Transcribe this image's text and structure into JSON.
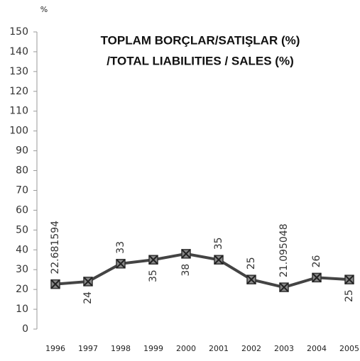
{
  "chart_data": {
    "type": "line",
    "title": [
      "TOPLAM BORÇLAR/SATIŞLAR (%)",
      "/TOTAL LIABILITIES / SALES (%)"
    ],
    "y_label": "%",
    "categories": [
      "1996",
      "1997",
      "1998",
      "1999",
      "2000",
      "2001",
      "2002",
      "2003",
      "2004",
      "2005"
    ],
    "values": [
      22.681594,
      24,
      33,
      35,
      38,
      35,
      25,
      21.095048,
      26,
      25
    ],
    "color": "#444444",
    "ylim": [
      0,
      150
    ],
    "yticks": [
      0,
      10,
      20,
      30,
      40,
      50,
      60,
      70,
      80,
      90,
      100,
      110,
      120,
      130,
      140,
      150
    ],
    "grid": false
  }
}
